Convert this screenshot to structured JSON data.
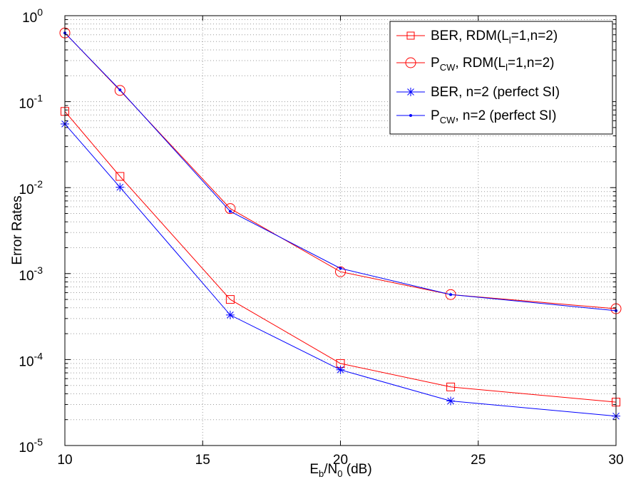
{
  "chart_data": {
    "type": "line",
    "title": "",
    "xlabel": {
      "main": "E",
      "sub1": "b",
      "slash": "/N",
      "sub2": "0",
      "tail": " (dB)"
    },
    "ylabel": "Error Rates",
    "xlim": [
      10,
      30
    ],
    "ylim": [
      1e-05,
      1
    ],
    "yscale": "log",
    "x_ticks": [
      10,
      15,
      20,
      25,
      30
    ],
    "x_tick_labels": [
      "10",
      "15",
      "20",
      "25",
      "30"
    ],
    "y_ticks": [
      {
        "value": 1,
        "base": "10",
        "exp": "0"
      },
      {
        "value": 0.1,
        "base": "10",
        "exp": "-1"
      },
      {
        "value": 0.01,
        "base": "10",
        "exp": "-2"
      },
      {
        "value": 0.001,
        "base": "10",
        "exp": "-3"
      },
      {
        "value": 0.0001,
        "base": "10",
        "exp": "-4"
      },
      {
        "value": 1e-05,
        "base": "10",
        "exp": "-5"
      }
    ],
    "grid": true,
    "legend_position": "top-right",
    "x": [
      10,
      12,
      16,
      20,
      24,
      30
    ],
    "series": [
      {
        "legend": {
          "main": "BER, RDM(L",
          "sub": "l",
          "tail": "=1,n=2)"
        },
        "color": "#ff0000",
        "marker": "square",
        "values": [
          0.077,
          0.0135,
          0.0005,
          9e-05,
          4.8e-05,
          3.2e-05
        ]
      },
      {
        "legend": {
          "main": "P",
          "sub": "CW",
          "tail": ", RDM(L",
          "sub2": "l",
          "tail2": "=1,n=2)"
        },
        "color": "#ff0000",
        "marker": "circle",
        "values": [
          0.63,
          0.135,
          0.0057,
          0.00105,
          0.00057,
          0.00039
        ]
      },
      {
        "legend": {
          "main": "BER, n=2 (perfect SI)"
        },
        "color": "#0000ff",
        "marker": "star",
        "values": [
          0.055,
          0.0101,
          0.00033,
          7.6e-05,
          3.3e-05,
          2.2e-05
        ]
      },
      {
        "legend": {
          "main": "P",
          "sub": "CW",
          "tail": ", n=2 (perfect SI)"
        },
        "color": "#0000ff",
        "marker": "dot",
        "values": [
          0.63,
          0.137,
          0.0053,
          0.00115,
          0.00057,
          0.00037
        ]
      }
    ]
  }
}
